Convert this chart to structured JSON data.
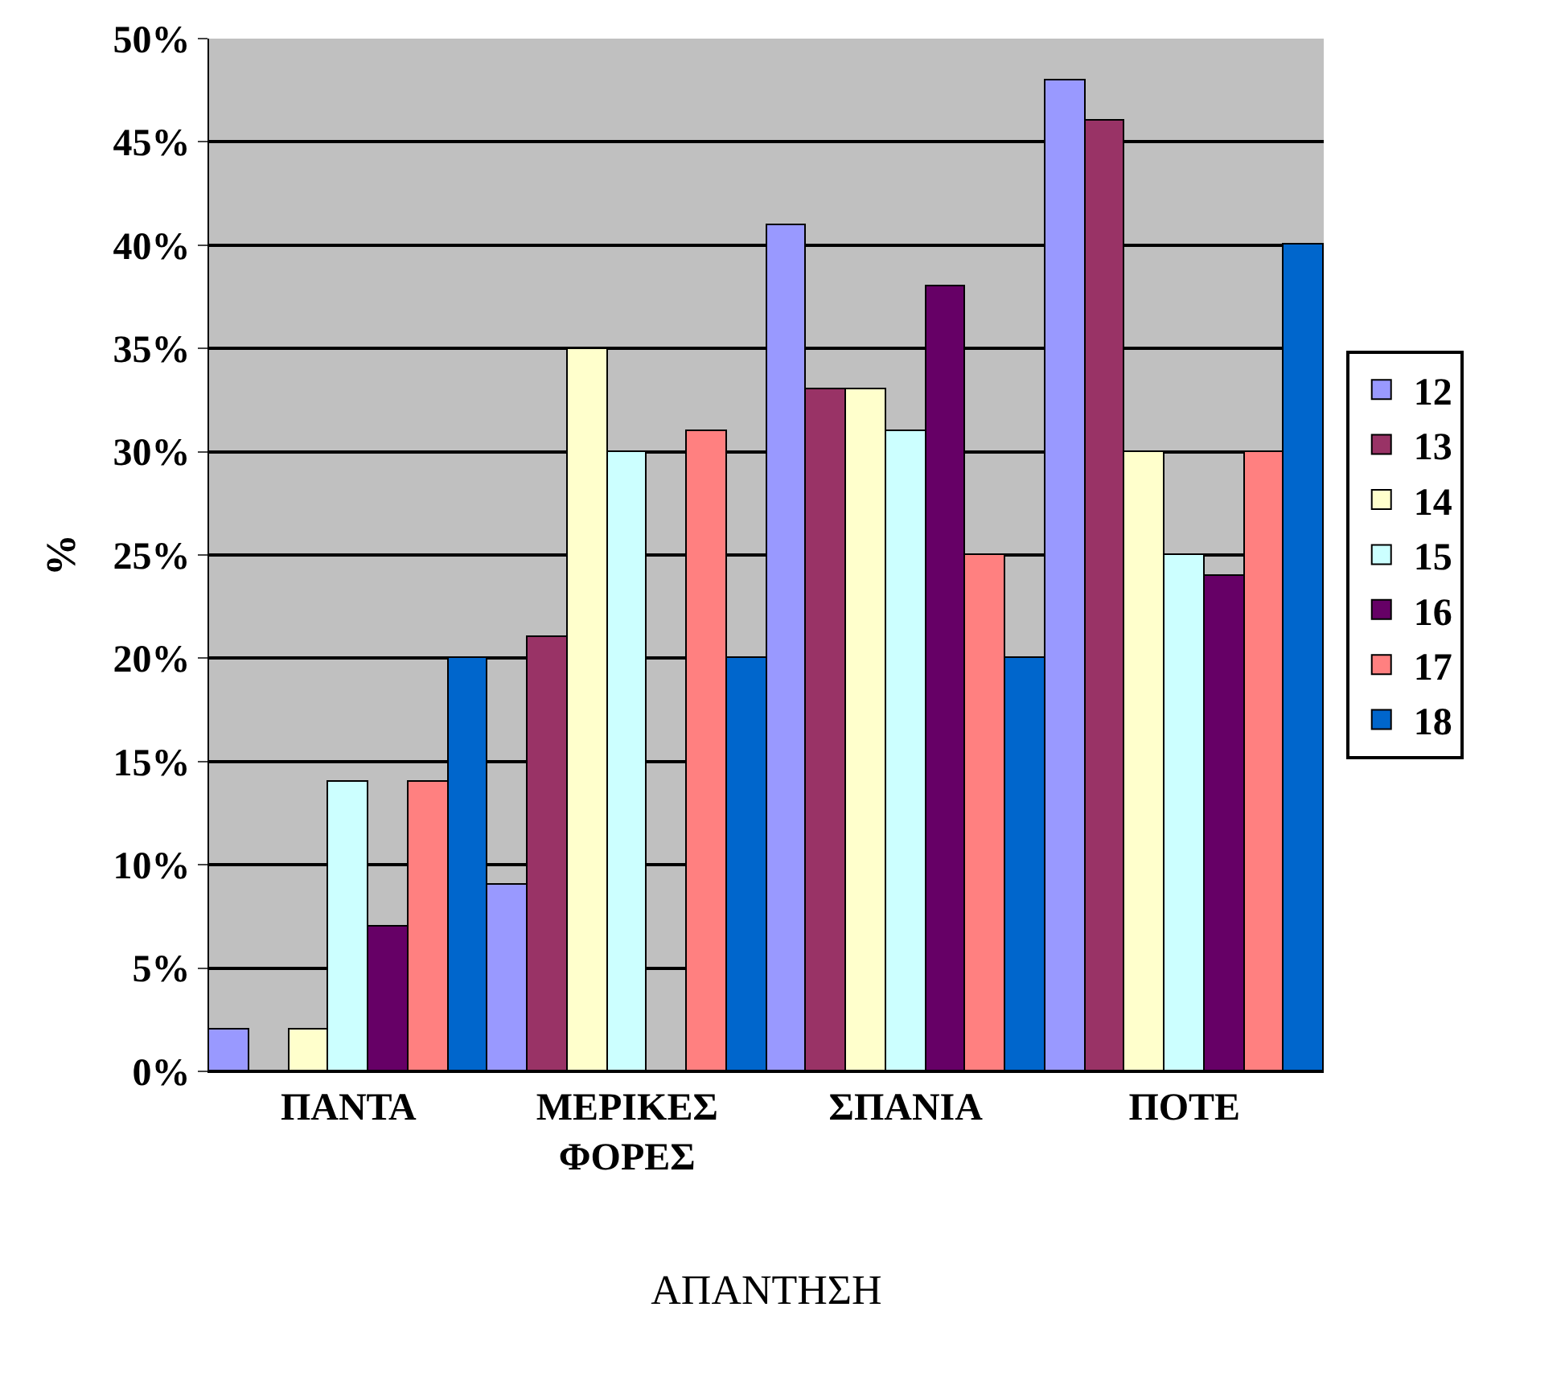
{
  "chart_data": {
    "type": "bar",
    "xlabel": "ΑΠΑΝΤΗΣΗ",
    "ylabel": "%",
    "categories": [
      "ΠΑΝΤΑ",
      "ΜΕΡΙΚΕΣ ΦΟΡΕΣ",
      "ΣΠΑΝΙΑ",
      "ΠΟΤΕ"
    ],
    "series": [
      {
        "name": "12",
        "color": "#9999ff",
        "values": [
          2,
          9,
          41,
          48
        ]
      },
      {
        "name": "13",
        "color": "#993366",
        "values": [
          0,
          21,
          33,
          46
        ]
      },
      {
        "name": "14",
        "color": "#ffffcc",
        "values": [
          2,
          35,
          33,
          30
        ]
      },
      {
        "name": "15",
        "color": "#ccffff",
        "values": [
          14,
          30,
          31,
          25
        ]
      },
      {
        "name": "16",
        "color": "#660066",
        "values": [
          7,
          0,
          38,
          24
        ]
      },
      {
        "name": "17",
        "color": "#ff8080",
        "values": [
          14,
          31,
          25,
          30
        ]
      },
      {
        "name": "18",
        "color": "#0066cc",
        "values": [
          20,
          20,
          20,
          40
        ]
      }
    ],
    "ylim": [
      0,
      50
    ],
    "yticks": [
      {
        "value": 0,
        "label": "0%"
      },
      {
        "value": 5,
        "label": "5%"
      },
      {
        "value": 10,
        "label": "10%"
      },
      {
        "value": 15,
        "label": "15%"
      },
      {
        "value": 20,
        "label": "20%"
      },
      {
        "value": 25,
        "label": "25%"
      },
      {
        "value": 30,
        "label": "30%"
      },
      {
        "value": 35,
        "label": "35%"
      },
      {
        "value": 40,
        "label": "40%"
      },
      {
        "value": 45,
        "label": "45%"
      },
      {
        "value": 50,
        "label": "50%"
      }
    ],
    "grid": "y",
    "legend": "right"
  }
}
